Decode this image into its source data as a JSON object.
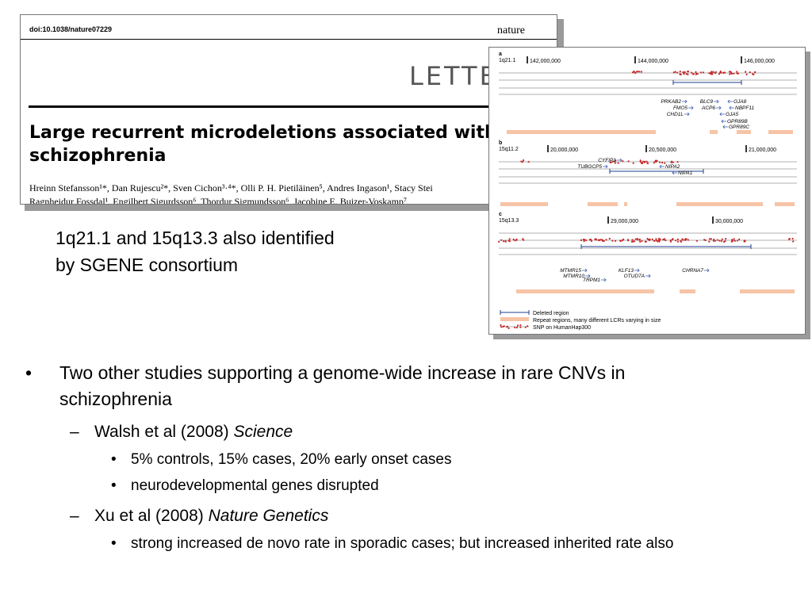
{
  "paper": {
    "doi": "doi:10.1038/nature07229",
    "journal": "nature",
    "section": "LETTE",
    "title": "Large recurrent microdeletions associated with schizophrenia",
    "authors_line1": "Hreinn Stefansson¹*, Dan Rujescu²*, Sven Cichon³·⁴*, Olli P. H. Pietiläinen⁵, Andres Ingason¹, Stacy Stei",
    "authors_line2": "Ragnheidur Fossdal¹, Engilbert Sigurdsson⁶, Thordur Sigmundsson⁶, Jacobine E. Buizer-Voskamp⁷,"
  },
  "caption": {
    "line1": "1q21.1 and 15q13.3 also identified",
    "line2": "by SGENE consortium"
  },
  "figure": {
    "panels": [
      {
        "letter": "a",
        "region": "1q21.1",
        "ticks": [
          "142,000,000",
          "144,000,000",
          "146,000,000"
        ],
        "genes": [
          "PRKAB2",
          "BLC9",
          "GJA8",
          "FMO5",
          "ACP6",
          "NBPF11",
          "CHD1L",
          "GJA5",
          "GPR89B",
          "GPR89C"
        ]
      },
      {
        "letter": "b",
        "region": "15q11.2",
        "ticks": [
          "20,000,000",
          "20,500,000",
          "21,000,000"
        ],
        "genes": [
          "CYFIP1",
          "TUBGCP5",
          "NIPA2",
          "NIPA1"
        ]
      },
      {
        "letter": "c",
        "region": "15q13.3",
        "ticks": [
          "29,000,000",
          "30,000,000"
        ],
        "genes": [
          "MTMR15",
          "MTMR10",
          "TRPM1",
          "KLF13",
          "OTUD7A",
          "CHRNA7"
        ]
      }
    ],
    "legend": {
      "deleted": "Deleted region",
      "repeat": "Repeat regions, many different LCRs varying in size",
      "snp": "SNP on HumanHap300"
    },
    "colors": {
      "snp": "#c62828",
      "deletion": "#1f3f8f",
      "repeat": "#f6c4a6"
    }
  },
  "bullets": {
    "main": "Two other studies supporting a genome-wide increase in rare CNVs in schizophrenia",
    "marker1": "•",
    "marker2": "–",
    "marker3": "•",
    "studies": [
      {
        "authors": "Walsh et al (2008) ",
        "journal": "Science",
        "points": [
          "5% controls, 15% cases, 20% early onset cases",
          "neurodevelopmental genes disrupted"
        ]
      },
      {
        "authors": "Xu et al (2008) ",
        "journal": "Nature Genetics",
        "points": [
          "strong increased de novo rate in sporadic cases; but increased inherited rate also"
        ]
      }
    ]
  }
}
